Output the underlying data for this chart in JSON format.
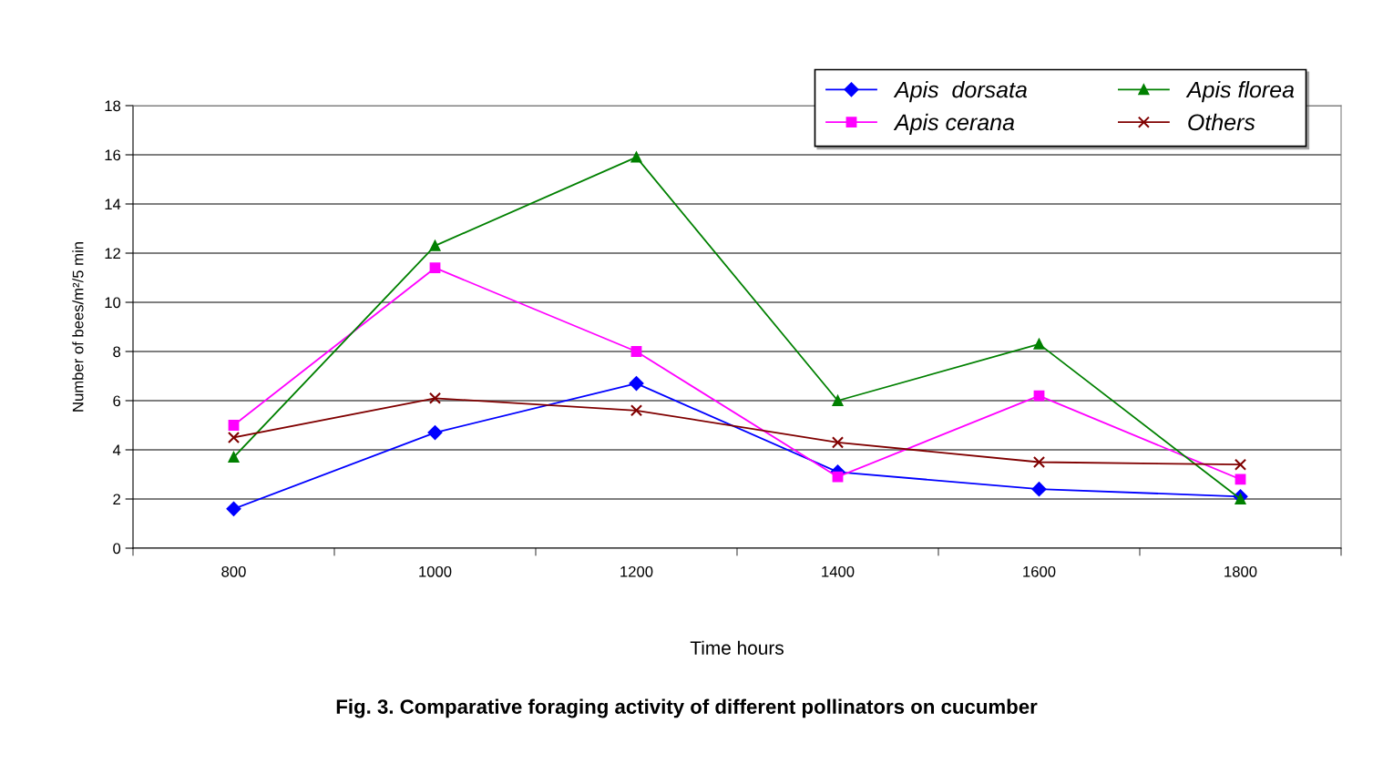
{
  "chart_data": {
    "type": "line",
    "title": "Fig. 3. Comparative foraging activity of different pollinators on cucumber",
    "xlabel": "Time hours",
    "ylabel": "Number of bees/m²/5 min",
    "categories": [
      "800",
      "1000",
      "1200",
      "1400",
      "1600",
      "1800"
    ],
    "series": [
      {
        "name": "Apis  dorsata",
        "color": "#0000ff",
        "marker": "diamond",
        "values": [
          1.6,
          4.7,
          6.7,
          3.1,
          2.4,
          2.1
        ]
      },
      {
        "name": "Apis cerana",
        "color": "#ff00ff",
        "marker": "square",
        "values": [
          5.0,
          11.4,
          8.0,
          2.9,
          6.2,
          2.8
        ]
      },
      {
        "name": "Apis florea",
        "color": "#008000",
        "marker": "triangle",
        "values": [
          3.7,
          12.3,
          15.9,
          6.0,
          8.3,
          2.0
        ]
      },
      {
        "name": "Others",
        "color": "#800000",
        "marker": "cross",
        "values": [
          4.5,
          6.1,
          5.6,
          4.3,
          3.5,
          3.4
        ]
      }
    ],
    "ylim": [
      0,
      18
    ],
    "yticks": [
      0,
      2,
      4,
      6,
      8,
      10,
      12,
      14,
      16,
      18
    ],
    "grid": "y",
    "legend": "top right"
  }
}
